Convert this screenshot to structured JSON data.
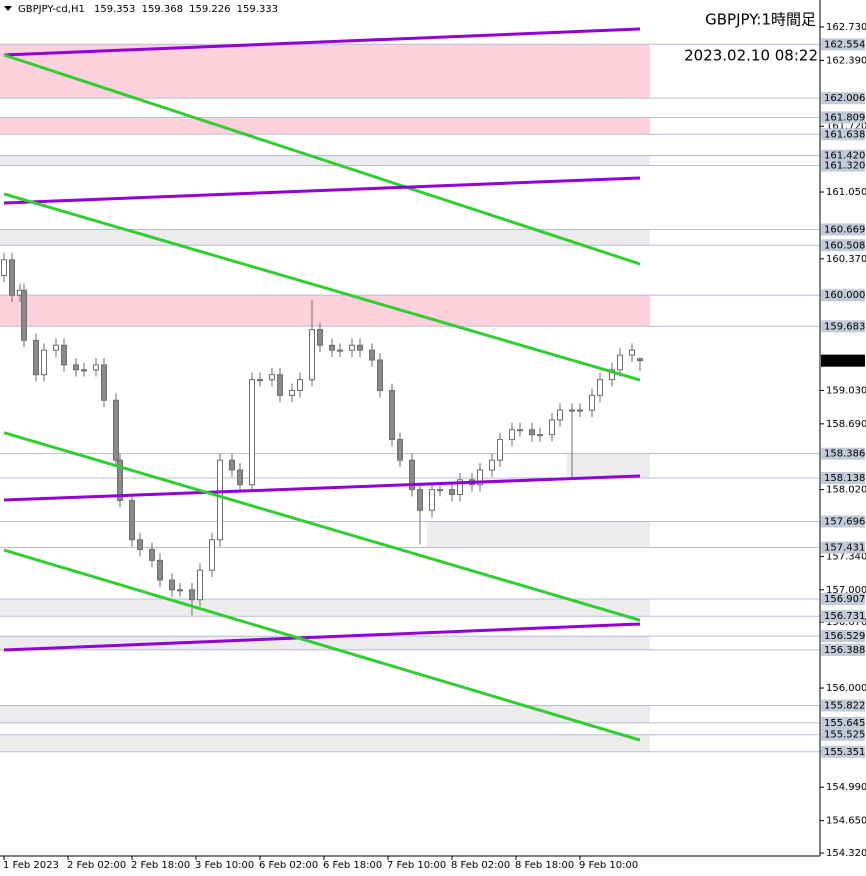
{
  "chart_data": {
    "type": "candlestick",
    "symbol": "GBPJPY-cd,H1",
    "title": "GBPJPY:1時間足",
    "subtitle": "2023.02.10 08:22",
    "x": [
      0,
      2,
      4,
      5,
      8,
      10,
      13,
      15,
      18,
      20,
      23,
      25,
      28,
      29,
      32,
      34,
      37,
      39,
      42,
      44,
      47,
      49,
      52,
      54,
      57,
      59,
      62,
      64,
      67,
      69,
      72,
      74,
      77,
      79,
      82,
      84,
      87,
      89,
      92,
      94,
      97,
      99,
      102,
      104,
      107,
      109,
      112,
      114,
      117,
      119,
      122,
      124,
      127,
      129,
      132,
      134,
      137,
      139,
      142,
      144,
      147,
      149,
      152,
      154,
      157,
      159
    ],
    "open": [
      160.2,
      160.36,
      160.0,
      160.05,
      159.54,
      159.19,
      159.44,
      159.49,
      159.29,
      159.24,
      159.24,
      159.29,
      158.93,
      158.32,
      157.91,
      157.51,
      157.41,
      157.3,
      157.1,
      157.0,
      157.0,
      156.9,
      157.2,
      157.51,
      158.32,
      158.22,
      158.07,
      159.14,
      159.14,
      159.19,
      158.98,
      159.03,
      159.14,
      159.65,
      159.49,
      159.44,
      159.44,
      159.49,
      159.44,
      159.34,
      159.03,
      158.53,
      158.32,
      158.02,
      157.81,
      158.02,
      158.02,
      157.97,
      158.12,
      158.07,
      158.22,
      158.32,
      158.53,
      158.63,
      158.63,
      158.58,
      158.58,
      158.73,
      158.83,
      158.83,
      158.83,
      158.98,
      159.14,
      159.24,
      159.39,
      159.353
    ],
    "high": [
      160.43,
      160.43,
      160.12,
      160.12,
      159.61,
      159.51,
      159.56,
      159.56,
      159.36,
      159.31,
      159.36,
      159.36,
      159.0,
      158.39,
      157.98,
      157.58,
      157.48,
      157.37,
      157.17,
      157.07,
      157.07,
      157.27,
      157.58,
      158.39,
      158.39,
      158.29,
      159.21,
      159.21,
      159.26,
      159.26,
      159.1,
      159.21,
      159.95,
      159.72,
      159.56,
      159.51,
      159.56,
      159.56,
      159.51,
      159.41,
      159.1,
      158.6,
      158.39,
      158.09,
      158.09,
      158.09,
      158.09,
      158.19,
      158.19,
      158.29,
      158.39,
      158.6,
      158.7,
      158.7,
      158.7,
      158.65,
      158.8,
      158.9,
      158.9,
      158.9,
      159.05,
      159.21,
      159.31,
      159.46,
      159.51,
      159.368
    ],
    "low": [
      160.13,
      159.93,
      159.93,
      159.47,
      159.12,
      159.12,
      159.37,
      159.22,
      159.17,
      159.17,
      159.17,
      158.86,
      158.25,
      157.84,
      157.44,
      157.34,
      157.23,
      157.03,
      156.93,
      156.93,
      156.74,
      156.83,
      157.13,
      157.44,
      158.15,
      158.0,
      158.0,
      159.07,
      159.07,
      158.91,
      158.91,
      158.96,
      159.07,
      159.42,
      159.37,
      159.37,
      159.37,
      159.37,
      159.27,
      158.96,
      158.46,
      158.25,
      157.95,
      157.46,
      157.74,
      157.95,
      157.9,
      157.9,
      158.0,
      158.0,
      158.15,
      158.25,
      158.46,
      158.56,
      158.51,
      158.51,
      158.51,
      158.66,
      158.14,
      158.76,
      158.76,
      158.91,
      159.07,
      159.17,
      159.32,
      159.226
    ],
    "close": [
      160.36,
      160.0,
      160.05,
      159.54,
      159.19,
      159.44,
      159.49,
      159.29,
      159.24,
      159.24,
      159.29,
      158.93,
      158.32,
      157.91,
      157.51,
      157.41,
      157.3,
      157.1,
      157.0,
      157.0,
      156.9,
      157.2,
      157.51,
      158.32,
      158.22,
      158.07,
      159.14,
      159.14,
      159.19,
      158.98,
      159.03,
      159.14,
      159.65,
      159.49,
      159.44,
      159.44,
      159.49,
      159.44,
      159.34,
      159.03,
      158.53,
      158.32,
      158.02,
      157.81,
      158.02,
      158.02,
      157.97,
      158.12,
      158.07,
      158.22,
      158.32,
      158.53,
      158.63,
      158.63,
      158.58,
      158.58,
      158.73,
      158.83,
      158.83,
      158.83,
      158.98,
      159.14,
      159.24,
      159.39,
      159.44,
      159.333
    ],
    "xlim": [
      -1,
      204
    ],
    "xticks": [
      {
        "value": 0,
        "label": "1 Feb 2023"
      },
      {
        "value": 16,
        "label": "2 Feb 02:00"
      },
      {
        "value": 32,
        "label": "2 Feb 18:00"
      },
      {
        "value": 48,
        "label": "3 Feb 10:00"
      },
      {
        "value": 64,
        "label": "6 Feb 02:00"
      },
      {
        "value": 80,
        "label": "6 Feb 18:00"
      },
      {
        "value": 96,
        "label": "7 Feb 10:00"
      },
      {
        "value": 112,
        "label": "8 Feb 02:00"
      },
      {
        "value": 128,
        "label": "8 Feb 18:00"
      },
      {
        "value": 144,
        "label": "9 Feb 10:00"
      }
    ],
    "ylim": [
      154.29,
      163.005
    ],
    "yticks": [
      {
        "value": 162.73,
        "label": "162.730"
      },
      {
        "value": 162.39,
        "label": "162.390"
      },
      {
        "value": 161.72,
        "label": "161.720"
      },
      {
        "value": 161.05,
        "label": "161.050"
      },
      {
        "value": 160.37,
        "label": "160.370"
      },
      {
        "value": 159.03,
        "label": "159.030"
      },
      {
        "value": 158.69,
        "label": "158.690"
      },
      {
        "value": 158.02,
        "label": "158.020"
      },
      {
        "value": 157.34,
        "label": "157.340"
      },
      {
        "value": 157,
        "label": "157.000"
      },
      {
        "value": 156.67,
        "label": "156.670"
      },
      {
        "value": 156,
        "label": "156.000"
      },
      {
        "value": 154.99,
        "label": "154.990"
      },
      {
        "value": 154.65,
        "label": "154.650"
      },
      {
        "value": 154.32,
        "label": "154.320"
      }
    ],
    "zones": [
      {
        "high": 162.554,
        "low": 162.006,
        "color": "#ffd1dc",
        "from": -1,
        "to": 161.5
      },
      {
        "high": 161.809,
        "low": 161.638,
        "color": "#ffd1dc",
        "from": -1,
        "to": 161.5
      },
      {
        "high": 161.42,
        "low": 161.32,
        "color": "#ececec",
        "from": -1,
        "to": 161.5
      },
      {
        "high": 160.669,
        "low": 160.508,
        "color": "#ececec",
        "from": -1,
        "to": 161.5
      },
      {
        "high": 160,
        "low": 159.683,
        "color": "#ffd1dc",
        "from": -1,
        "to": 161.5
      },
      {
        "high": 158.386,
        "low": 158.138,
        "color": "#ececec",
        "from": 140.75,
        "to": 161.5
      },
      {
        "high": 157.696,
        "low": 157.431,
        "color": "#ececec",
        "from": 105.75,
        "to": 161.5
      },
      {
        "high": 156.907,
        "low": 156.731,
        "color": "#ececec",
        "from": -1,
        "to": 161.5
      },
      {
        "high": 156.529,
        "low": 156.388,
        "color": "#ececec",
        "from": -1,
        "to": 161.5
      },
      {
        "high": 155.822,
        "low": 155.645,
        "color": "#ececec",
        "from": -1,
        "to": 161.5
      },
      {
        "high": 155.525,
        "low": 155.351,
        "color": "#ececec",
        "from": -1,
        "to": 161.5
      }
    ],
    "zone_labels": [
      {
        "high": "162.554",
        "low": "162.006"
      },
      {
        "high": "161.809",
        "low": "161.638"
      },
      {
        "high": "161.420",
        "low": "161.320"
      },
      {
        "high": "160.669",
        "low": "160.508"
      },
      {
        "high": "160.000",
        "low": "159.683"
      },
      {
        "high": "158.386",
        "low": "158.138"
      },
      {
        "high": "157.696",
        "low": "157.431"
      },
      {
        "high": "156.907",
        "low": "156.731"
      },
      {
        "high": "156.529",
        "low": "156.388"
      },
      {
        "high": "155.822",
        "low": "155.645"
      },
      {
        "high": "155.525",
        "low": "155.351"
      }
    ],
    "trendlines": [
      {
        "color": "#9400d3",
        "from": [
          0,
          162.445
        ],
        "to": [
          159,
          162.71
        ]
      },
      {
        "color": "#32cd32",
        "from": [
          0,
          162.445
        ],
        "to": [
          159,
          160.317
        ]
      },
      {
        "color": "#9400d3",
        "from": [
          0,
          160.938
        ],
        "to": [
          159,
          161.193
        ]
      },
      {
        "color": "#32cd32",
        "from": [
          0,
          161.03
        ],
        "to": [
          159,
          159.136
        ]
      },
      {
        "color": "#9400d3",
        "from": [
          0,
          157.914
        ],
        "to": [
          159,
          158.159
        ]
      },
      {
        "color": "#32cd32",
        "from": [
          0,
          158.6
        ],
        "to": [
          159,
          156.69
        ]
      },
      {
        "color": "#9400d3",
        "from": [
          0,
          156.387
        ],
        "to": [
          159,
          156.652
        ]
      },
      {
        "color": "#32cd32",
        "from": [
          0,
          157.405
        ],
        "to": [
          159,
          155.47
        ]
      }
    ]
  }
}
